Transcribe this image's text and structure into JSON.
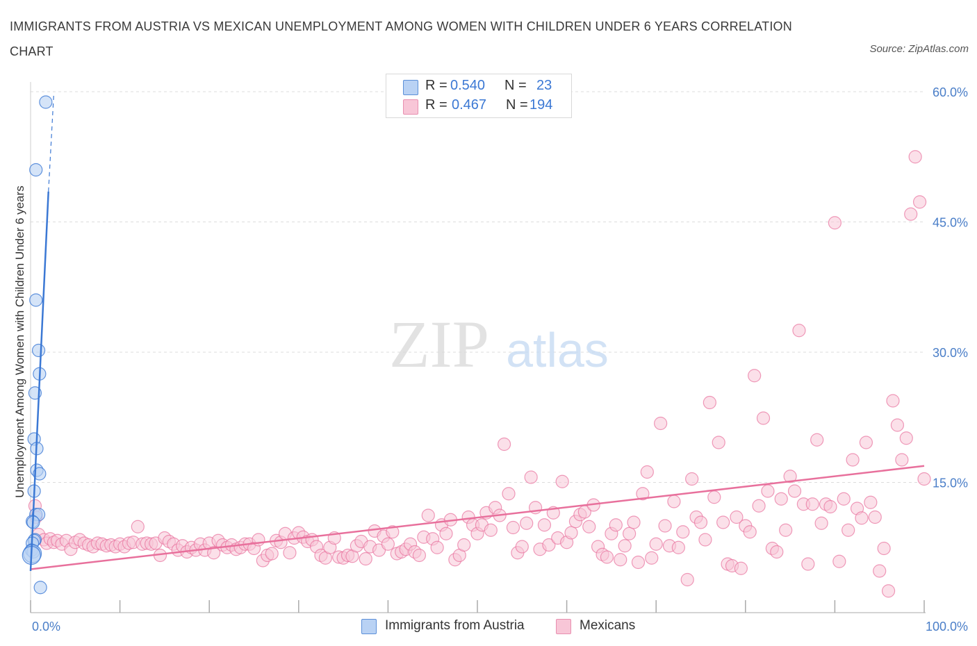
{
  "title": "IMMIGRANTS FROM AUSTRIA VS MEXICAN UNEMPLOYMENT AMONG WOMEN WITH CHILDREN UNDER 6 YEARS CORRELATION CHART",
  "source": "Source: ZipAtlas.com",
  "watermark": {
    "zip": "ZIP",
    "atlas": "atlas"
  },
  "colors": {
    "blue": "#3b78d4",
    "blue_fill": "#b9d2f4",
    "pink": "#e8709c",
    "pink_fill": "#f8c6d7",
    "axis_label_blue": "#4a7ec8",
    "grid": "#dcdcdc"
  },
  "legend": {
    "r_label": "R =",
    "n_label": "N =",
    "series": [
      {
        "r": "0.540",
        "n": "23"
      },
      {
        "r": "0.467",
        "n": "194"
      }
    ]
  },
  "bottom_legend": [
    "Immigrants from Austria",
    "Mexicans"
  ],
  "chart_data": {
    "type": "scatter",
    "title": "IMMIGRANTS FROM AUSTRIA VS MEXICAN UNEMPLOYMENT AMONG WOMEN WITH CHILDREN UNDER 6 YEARS CORRELATION CHART",
    "xlabel": "",
    "ylabel": "Unemployment Among Women with Children Under 6 years",
    "xlim": [
      0,
      100
    ],
    "ylim": [
      0,
      60
    ],
    "x_tick_labels": [
      "0.0%",
      "100.0%"
    ],
    "y_tick_labels": [
      "15.0%",
      "30.0%",
      "45.0%",
      "60.0%"
    ],
    "y_ticks": [
      15,
      30,
      45,
      60
    ],
    "grid": true,
    "legend_placement": "top-center",
    "series": [
      {
        "name": "Immigrants from Austria",
        "R": 0.54,
        "N": 23,
        "trend": {
          "x": [
            0,
            2.0
          ],
          "y": [
            4.8,
            48.5
          ]
        },
        "trend_extension": {
          "x": [
            2.0,
            2.6
          ],
          "y": [
            48.5,
            59.8
          ]
        },
        "points": [
          [
            1.7,
            58.8
          ],
          [
            0.6,
            51.0
          ],
          [
            0.6,
            36.0
          ],
          [
            0.9,
            30.2
          ],
          [
            1.0,
            27.5
          ],
          [
            0.5,
            25.3
          ],
          [
            0.4,
            20.0
          ],
          [
            0.7,
            18.9
          ],
          [
            0.7,
            16.4
          ],
          [
            1.0,
            16.0
          ],
          [
            0.4,
            14.0
          ],
          [
            0.6,
            11.3
          ],
          [
            0.9,
            11.3
          ],
          [
            0.2,
            10.5
          ],
          [
            0.3,
            10.4
          ],
          [
            0.5,
            8.4
          ],
          [
            0.4,
            8.3
          ],
          [
            0.2,
            8.0
          ],
          [
            0.1,
            7.2
          ],
          [
            0.3,
            7.0
          ],
          [
            0.2,
            6.8
          ],
          [
            0.1,
            6.6
          ],
          [
            1.1,
            2.9
          ]
        ]
      },
      {
        "name": "Mexicans",
        "R": 0.467,
        "N": 194,
        "trend": {
          "x": [
            0,
            100
          ],
          "y": [
            5.0,
            16.9
          ]
        },
        "points": [
          [
            0.5,
            12.3
          ],
          [
            0.6,
            11.0
          ],
          [
            0.9,
            9.0
          ],
          [
            1.5,
            8.4
          ],
          [
            1.8,
            8.0
          ],
          [
            2.2,
            8.5
          ],
          [
            2.6,
            8.1
          ],
          [
            3.0,
            8.3
          ],
          [
            3.5,
            7.9
          ],
          [
            4.0,
            8.3
          ],
          [
            4.5,
            7.3
          ],
          [
            5.0,
            8.1
          ],
          [
            5.5,
            8.4
          ],
          [
            6.0,
            8.0
          ],
          [
            6.5,
            7.8
          ],
          [
            7.0,
            7.6
          ],
          [
            7.5,
            8.0
          ],
          [
            8.0,
            7.9
          ],
          [
            8.5,
            7.7
          ],
          [
            9.0,
            7.8
          ],
          [
            9.5,
            7.6
          ],
          [
            10.0,
            7.9
          ],
          [
            10.5,
            7.6
          ],
          [
            11.0,
            8.0
          ],
          [
            11.5,
            8.1
          ],
          [
            12.0,
            9.9
          ],
          [
            12.5,
            7.9
          ],
          [
            13.0,
            8.0
          ],
          [
            13.5,
            7.9
          ],
          [
            14.0,
            8.0
          ],
          [
            14.5,
            6.6
          ],
          [
            15.0,
            8.6
          ],
          [
            15.5,
            8.2
          ],
          [
            16.0,
            7.9
          ],
          [
            16.5,
            7.2
          ],
          [
            17.0,
            7.7
          ],
          [
            17.5,
            7.0
          ],
          [
            18.0,
            7.5
          ],
          [
            18.5,
            7.2
          ],
          [
            19.0,
            7.9
          ],
          [
            19.5,
            7.2
          ],
          [
            20.0,
            8.0
          ],
          [
            20.5,
            6.9
          ],
          [
            21.0,
            8.3
          ],
          [
            21.5,
            7.8
          ],
          [
            22.0,
            7.5
          ],
          [
            22.5,
            7.8
          ],
          [
            23.0,
            7.3
          ],
          [
            23.5,
            7.5
          ],
          [
            24.0,
            7.9
          ],
          [
            24.5,
            7.9
          ],
          [
            25.0,
            7.4
          ],
          [
            25.5,
            8.4
          ],
          [
            26.0,
            6.0
          ],
          [
            26.5,
            6.6
          ],
          [
            27.0,
            6.8
          ],
          [
            27.5,
            8.3
          ],
          [
            28.0,
            8.1
          ],
          [
            28.5,
            9.1
          ],
          [
            29.0,
            6.9
          ],
          [
            29.5,
            8.6
          ],
          [
            30.0,
            9.2
          ],
          [
            30.5,
            8.7
          ],
          [
            31.0,
            8.2
          ],
          [
            31.5,
            8.4
          ],
          [
            32.0,
            7.6
          ],
          [
            32.5,
            6.6
          ],
          [
            33.0,
            6.3
          ],
          [
            33.5,
            7.5
          ],
          [
            34.0,
            8.6
          ],
          [
            34.5,
            6.4
          ],
          [
            35.0,
            6.3
          ],
          [
            35.5,
            6.6
          ],
          [
            36.0,
            6.5
          ],
          [
            36.5,
            7.7
          ],
          [
            37.0,
            8.2
          ],
          [
            37.5,
            6.2
          ],
          [
            38.0,
            7.6
          ],
          [
            38.5,
            9.4
          ],
          [
            39.0,
            7.2
          ],
          [
            39.5,
            8.8
          ],
          [
            40.0,
            7.9
          ],
          [
            40.5,
            9.3
          ],
          [
            41.0,
            6.8
          ],
          [
            41.5,
            7.0
          ],
          [
            42.0,
            7.3
          ],
          [
            42.5,
            7.9
          ],
          [
            43.0,
            7.0
          ],
          [
            43.5,
            6.6
          ],
          [
            44.0,
            8.7
          ],
          [
            44.5,
            11.2
          ],
          [
            45.0,
            8.5
          ],
          [
            45.5,
            7.5
          ],
          [
            46.0,
            10.1
          ],
          [
            46.5,
            9.1
          ],
          [
            47.0,
            10.7
          ],
          [
            47.5,
            6.1
          ],
          [
            48.0,
            6.6
          ],
          [
            48.5,
            7.8
          ],
          [
            49.0,
            11.0
          ],
          [
            49.5,
            10.1
          ],
          [
            50.0,
            9.1
          ],
          [
            50.5,
            10.1
          ],
          [
            51.0,
            11.5
          ],
          [
            51.5,
            9.5
          ],
          [
            52.0,
            12.1
          ],
          [
            52.5,
            11.2
          ],
          [
            53.0,
            19.4
          ],
          [
            53.5,
            13.7
          ],
          [
            54.0,
            9.8
          ],
          [
            54.5,
            6.9
          ],
          [
            55.0,
            7.6
          ],
          [
            55.5,
            10.3
          ],
          [
            56.0,
            15.6
          ],
          [
            56.5,
            12.1
          ],
          [
            57.0,
            7.3
          ],
          [
            57.5,
            10.1
          ],
          [
            58.0,
            7.8
          ],
          [
            58.5,
            11.5
          ],
          [
            59.0,
            8.6
          ],
          [
            59.5,
            15.1
          ],
          [
            60.0,
            8.1
          ],
          [
            60.5,
            9.2
          ],
          [
            61.0,
            10.5
          ],
          [
            61.5,
            11.3
          ],
          [
            62.0,
            11.6
          ],
          [
            62.5,
            9.9
          ],
          [
            63.0,
            12.4
          ],
          [
            63.5,
            7.6
          ],
          [
            64.0,
            6.7
          ],
          [
            64.5,
            6.4
          ],
          [
            65.0,
            9.1
          ],
          [
            65.5,
            10.1
          ],
          [
            66.0,
            6.1
          ],
          [
            66.5,
            7.7
          ],
          [
            67.0,
            9.1
          ],
          [
            67.5,
            10.4
          ],
          [
            68.0,
            5.8
          ],
          [
            68.5,
            13.7
          ],
          [
            69.0,
            16.2
          ],
          [
            69.5,
            6.3
          ],
          [
            70.0,
            7.9
          ],
          [
            70.5,
            21.8
          ],
          [
            71.0,
            10.0
          ],
          [
            71.5,
            7.7
          ],
          [
            72.0,
            12.8
          ],
          [
            72.5,
            7.5
          ],
          [
            73.0,
            9.3
          ],
          [
            73.5,
            3.8
          ],
          [
            74.0,
            15.4
          ],
          [
            74.5,
            11.0
          ],
          [
            75.0,
            10.4
          ],
          [
            75.5,
            8.4
          ],
          [
            76.0,
            24.2
          ],
          [
            76.5,
            13.3
          ],
          [
            77.0,
            19.6
          ],
          [
            77.5,
            10.4
          ],
          [
            78.0,
            5.6
          ],
          [
            78.5,
            5.4
          ],
          [
            79.0,
            11.0
          ],
          [
            79.5,
            5.1
          ],
          [
            80.0,
            10.0
          ],
          [
            80.5,
            9.3
          ],
          [
            81.0,
            27.3
          ],
          [
            81.5,
            12.3
          ],
          [
            82.0,
            22.4
          ],
          [
            82.5,
            14.0
          ],
          [
            83.0,
            7.4
          ],
          [
            83.5,
            7.0
          ],
          [
            84.0,
            13.1
          ],
          [
            84.5,
            9.5
          ],
          [
            85.0,
            15.7
          ],
          [
            85.5,
            14.0
          ],
          [
            86.0,
            32.5
          ],
          [
            86.5,
            12.5
          ],
          [
            87.0,
            5.6
          ],
          [
            87.5,
            12.5
          ],
          [
            88.0,
            19.9
          ],
          [
            88.5,
            10.3
          ],
          [
            89.0,
            12.5
          ],
          [
            89.5,
            12.2
          ],
          [
            90.0,
            44.9
          ],
          [
            90.5,
            5.9
          ],
          [
            91.0,
            13.1
          ],
          [
            91.5,
            9.5
          ],
          [
            92.0,
            17.6
          ],
          [
            92.5,
            12.0
          ],
          [
            93.0,
            10.9
          ],
          [
            93.5,
            19.6
          ],
          [
            94.0,
            12.7
          ],
          [
            94.5,
            11.0
          ],
          [
            95.0,
            4.8
          ],
          [
            95.5,
            7.4
          ],
          [
            96.0,
            2.5
          ],
          [
            96.5,
            24.4
          ],
          [
            97.0,
            21.6
          ],
          [
            97.5,
            17.6
          ],
          [
            98.0,
            20.1
          ],
          [
            98.5,
            45.9
          ],
          [
            99.0,
            52.5
          ],
          [
            99.5,
            47.3
          ],
          [
            100.0,
            15.4
          ]
        ]
      }
    ]
  }
}
